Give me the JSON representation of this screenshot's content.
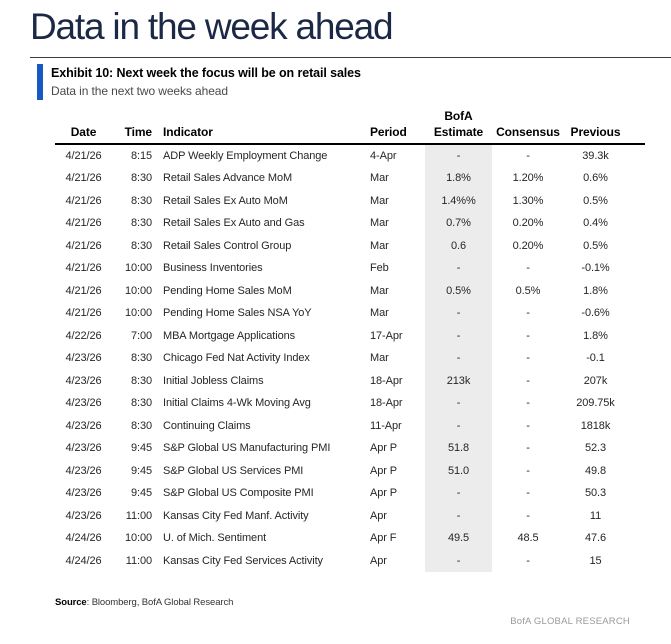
{
  "page": {
    "title": "Data in the week ahead"
  },
  "exhibit": {
    "title": "Exhibit 10: Next week the focus will be on retail sales",
    "subtitle": "Data in the next two weeks ahead"
  },
  "table": {
    "headers": {
      "date": "Date",
      "time": "Time",
      "indicator": "Indicator",
      "period": "Period",
      "estimate_line1": "BofA",
      "estimate_line2": "Estimate",
      "consensus": "Consensus",
      "previous": "Previous"
    },
    "rows": [
      {
        "date": "4/21/26",
        "time": "8:15",
        "indicator": "ADP Weekly Employment Change",
        "period": "4-Apr",
        "estimate": "-",
        "consensus": "-",
        "previous": "39.3k"
      },
      {
        "date": "4/21/26",
        "time": "8:30",
        "indicator": "Retail Sales Advance MoM",
        "period": "Mar",
        "estimate": "1.8%",
        "consensus": "1.20%",
        "previous": "0.6%"
      },
      {
        "date": "4/21/26",
        "time": "8:30",
        "indicator": "Retail Sales Ex Auto MoM",
        "period": "Mar",
        "estimate": "1.4%%",
        "consensus": "1.30%",
        "previous": "0.5%"
      },
      {
        "date": "4/21/26",
        "time": "8:30",
        "indicator": "Retail Sales Ex Auto and Gas",
        "period": "Mar",
        "estimate": "0.7%",
        "consensus": "0.20%",
        "previous": "0.4%"
      },
      {
        "date": "4/21/26",
        "time": "8:30",
        "indicator": "Retail Sales Control Group",
        "period": "Mar",
        "estimate": "0.6",
        "consensus": "0.20%",
        "previous": "0.5%"
      },
      {
        "date": "4/21/26",
        "time": "10:00",
        "indicator": "Business Inventories",
        "period": "Feb",
        "estimate": "-",
        "consensus": "-",
        "previous": "-0.1%"
      },
      {
        "date": "4/21/26",
        "time": "10:00",
        "indicator": "Pending Home Sales MoM",
        "period": "Mar",
        "estimate": "0.5%",
        "consensus": "0.5%",
        "previous": "1.8%"
      },
      {
        "date": "4/21/26",
        "time": "10:00",
        "indicator": "Pending Home Sales NSA YoY",
        "period": "Mar",
        "estimate": "-",
        "consensus": "-",
        "previous": "-0.6%"
      },
      {
        "date": "4/22/26",
        "time": "7:00",
        "indicator": "MBA Mortgage Applications",
        "period": "17-Apr",
        "estimate": "-",
        "consensus": "-",
        "previous": "1.8%"
      },
      {
        "date": "4/23/26",
        "time": "8:30",
        "indicator": "Chicago Fed Nat Activity Index",
        "period": "Mar",
        "estimate": "-",
        "consensus": "-",
        "previous": "-0.1"
      },
      {
        "date": "4/23/26",
        "time": "8:30",
        "indicator": "Initial Jobless Claims",
        "period": "18-Apr",
        "estimate": "213k",
        "consensus": "-",
        "previous": "207k"
      },
      {
        "date": "4/23/26",
        "time": "8:30",
        "indicator": "Initial Claims 4-Wk Moving Avg",
        "period": "18-Apr",
        "estimate": "-",
        "consensus": "-",
        "previous": "209.75k"
      },
      {
        "date": "4/23/26",
        "time": "8:30",
        "indicator": "Continuing Claims",
        "period": "11-Apr",
        "estimate": "-",
        "consensus": "-",
        "previous": "1818k"
      },
      {
        "date": "4/23/26",
        "time": "9:45",
        "indicator": "S&P Global US Manufacturing PMI",
        "period": "Apr P",
        "estimate": "51.8",
        "consensus": "-",
        "previous": "52.3"
      },
      {
        "date": "4/23/26",
        "time": "9:45",
        "indicator": "S&P Global US Services PMI",
        "period": "Apr P",
        "estimate": "51.0",
        "consensus": "-",
        "previous": "49.8"
      },
      {
        "date": "4/23/26",
        "time": "9:45",
        "indicator": "S&P Global US Composite PMI",
        "period": "Apr P",
        "estimate": "-",
        "consensus": "-",
        "previous": "50.3"
      },
      {
        "date": "4/23/26",
        "time": "11:00",
        "indicator": "Kansas City Fed Manf. Activity",
        "period": "Apr",
        "estimate": "-",
        "consensus": "-",
        "previous": "11"
      },
      {
        "date": "4/24/26",
        "time": "10:00",
        "indicator": "U. of Mich. Sentiment",
        "period": "Apr F",
        "estimate": "49.5",
        "consensus": "48.5",
        "previous": "47.6"
      },
      {
        "date": "4/24/26",
        "time": "11:00",
        "indicator": "Kansas City Fed Services Activity",
        "period": "Apr",
        "estimate": "-",
        "consensus": "-",
        "previous": "15"
      }
    ]
  },
  "footer": {
    "source_label": "Source",
    "source_text": ": Bloomberg, BofA Global Research",
    "brand": "BofA GLOBAL RESEARCH"
  },
  "colors": {
    "title_navy": "#1b2947",
    "accent_blue": "#1659c2",
    "estimate_band": "#ececec"
  }
}
